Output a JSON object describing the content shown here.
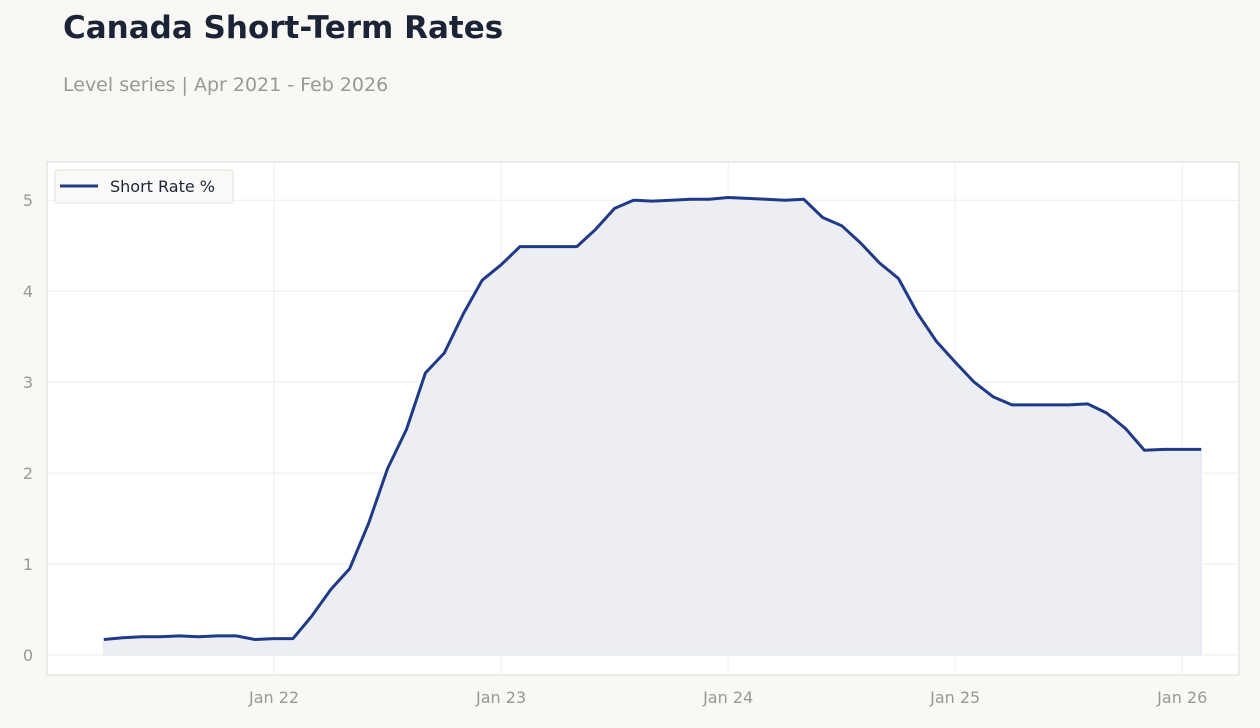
{
  "header": {
    "title": "Canada Short-Term Rates",
    "subtitle": "Level series | Apr 2021 - Feb 2026"
  },
  "colors": {
    "line": "#1f3a87",
    "fill": "#edeef4",
    "grid": "#eeeeee",
    "axis_text": "#999893",
    "plot_border": "#dcdad2",
    "plot_bg": "#ffffff",
    "page_bg": "#f9f8f5"
  },
  "chart_data": {
    "type": "area",
    "title": "Canada Short-Term Rates",
    "subtitle": "Level series | Apr 2021 - Feb 2026",
    "x": [
      "2021-04",
      "2021-05",
      "2021-06",
      "2021-07",
      "2021-08",
      "2021-09",
      "2021-10",
      "2021-11",
      "2021-12",
      "2022-01",
      "2022-02",
      "2022-03",
      "2022-04",
      "2022-05",
      "2022-06",
      "2022-07",
      "2022-08",
      "2022-09",
      "2022-10",
      "2022-11",
      "2022-12",
      "2023-01",
      "2023-02",
      "2023-03",
      "2023-04",
      "2023-05",
      "2023-06",
      "2023-07",
      "2023-08",
      "2023-09",
      "2023-10",
      "2023-11",
      "2023-12",
      "2024-01",
      "2024-02",
      "2024-03",
      "2024-04",
      "2024-05",
      "2024-06",
      "2024-07",
      "2024-08",
      "2024-09",
      "2024-10",
      "2024-11",
      "2024-12",
      "2025-01",
      "2025-02",
      "2025-03",
      "2025-04",
      "2025-05",
      "2025-06",
      "2025-07",
      "2025-08",
      "2025-09",
      "2025-10",
      "2025-11",
      "2025-12",
      "2026-01",
      "2026-02"
    ],
    "series": [
      {
        "name": "Short Rate %",
        "values": [
          0.17,
          0.19,
          0.2,
          0.2,
          0.21,
          0.2,
          0.21,
          0.21,
          0.17,
          0.18,
          0.18,
          0.43,
          0.72,
          0.95,
          1.45,
          2.05,
          2.48,
          3.1,
          3.32,
          3.75,
          4.12,
          4.29,
          4.49,
          4.49,
          4.49,
          4.49,
          4.68,
          4.91,
          5.0,
          4.99,
          5.0,
          5.01,
          5.01,
          5.03,
          5.02,
          5.01,
          5.0,
          5.01,
          4.81,
          4.72,
          4.53,
          4.31,
          4.14,
          3.76,
          3.45,
          3.22,
          3.0,
          2.84,
          2.75,
          2.75,
          2.75,
          2.75,
          2.76,
          2.66,
          2.49,
          2.25,
          2.26,
          2.26,
          2.26
        ]
      }
    ],
    "x_ticks": [
      {
        "date": "2022-01",
        "label": "Jan 22"
      },
      {
        "date": "2023-01",
        "label": "Jan 23"
      },
      {
        "date": "2024-01",
        "label": "Jan 24"
      },
      {
        "date": "2025-01",
        "label": "Jan 25"
      },
      {
        "date": "2026-01",
        "label": "Jan 26"
      }
    ],
    "y_ticks": [
      0,
      1,
      2,
      3,
      4,
      5
    ],
    "ylim": [
      -0.22,
      5.42
    ],
    "xlim": [
      "2021-01",
      "2026-04"
    ],
    "grid": true,
    "legend_position": "top-left"
  }
}
